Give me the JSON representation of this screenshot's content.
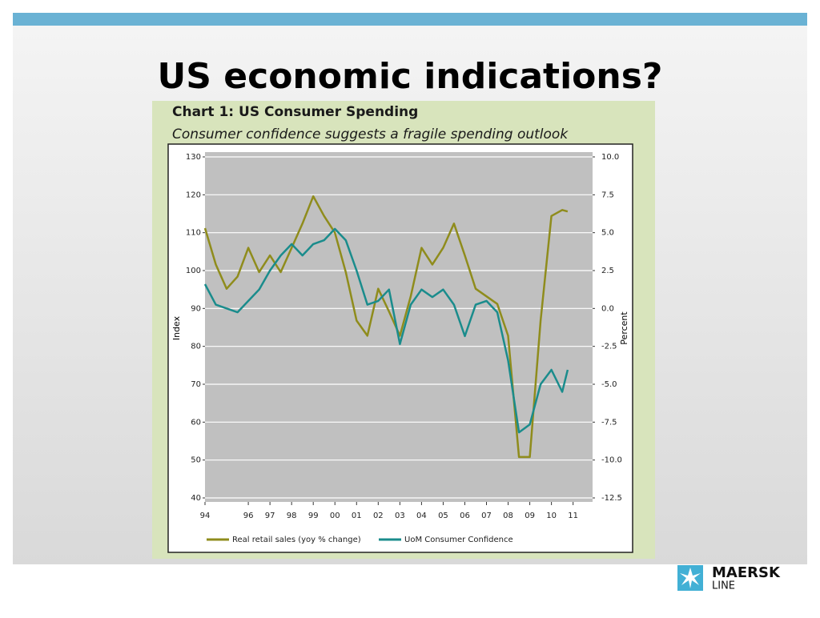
{
  "slide": {
    "title": "US economic indications?",
    "logo": [
      "MAERSK",
      "LINE"
    ]
  },
  "chart_data": {
    "type": "line",
    "title": "Chart 1: US Consumer Spending",
    "subtitle": "Consumer confidence suggests a fragile spending outlook",
    "y_label": "Index",
    "y2_label": "Percent",
    "x": [
      1994,
      1994.5,
      1995,
      1995.5,
      1996,
      1996.5,
      1997,
      1997.5,
      1998,
      1998.5,
      1999,
      1999.5,
      2000,
      2000.5,
      2001,
      2001.5,
      2002,
      2002.5,
      2003,
      2003.5,
      2004,
      2004.5,
      2005,
      2005.5,
      2006,
      2006.5,
      2007,
      2007.5,
      2008,
      2008.5,
      2009,
      2009.5,
      2010,
      2010.5,
      2010.75
    ],
    "series": [
      {
        "name": "Real retail sales (yoy % change)",
        "color": "#8f8c1c",
        "axis": "y2",
        "values": [
          5.3,
          2.9,
          1.3,
          2.1,
          4.0,
          2.4,
          3.5,
          2.4,
          4.0,
          5.6,
          7.4,
          6.1,
          5.0,
          2.4,
          -0.8,
          -1.8,
          1.3,
          -0.2,
          -1.8,
          0.8,
          4.0,
          2.9,
          4.0,
          5.6,
          3.5,
          1.3,
          0.8,
          0.3,
          -1.8,
          -9.8,
          -9.8,
          -0.8,
          6.1,
          6.5,
          6.4
        ]
      },
      {
        "name": "UoM Consumer Confidence",
        "color": "#1a8c8c",
        "values": [
          96.4,
          91,
          90,
          89,
          92,
          95,
          100,
          104,
          107,
          104,
          107,
          108,
          111,
          108,
          100,
          91,
          92,
          95,
          80.6,
          91,
          95,
          93,
          95,
          91,
          82.7,
          91,
          92,
          89,
          76.3,
          57.3,
          59.4,
          70,
          73.8,
          68,
          73.8
        ]
      }
    ],
    "xlim": [
      1994,
      2011.9
    ],
    "xticks": [
      {
        "value": 1994,
        "label": "94"
      },
      {
        "value": 1996,
        "label": "96"
      },
      {
        "value": 1997,
        "label": "97"
      },
      {
        "value": 1998,
        "label": "98"
      },
      {
        "value": 1999,
        "label": "99"
      },
      {
        "value": 2000,
        "label": "00"
      },
      {
        "value": 2001,
        "label": "01"
      },
      {
        "value": 2002,
        "label": "02"
      },
      {
        "value": 2003,
        "label": "03"
      },
      {
        "value": 2004,
        "label": "04"
      },
      {
        "value": 2005,
        "label": "05"
      },
      {
        "value": 2006,
        "label": "06"
      },
      {
        "value": 2007,
        "label": "07"
      },
      {
        "value": 2008,
        "label": "08"
      },
      {
        "value": 2009,
        "label": "09"
      },
      {
        "value": 2010,
        "label": "10"
      },
      {
        "value": 2011,
        "label": "11"
      }
    ],
    "ylim": [
      40,
      130
    ],
    "yticks": [
      40,
      50,
      60,
      70,
      80,
      90,
      100,
      110,
      120,
      130
    ],
    "y2lim": [
      -12.5,
      10
    ],
    "y2ticks": [
      -12.5,
      {
        "value": -10,
        "label": "-10.0"
      },
      -7.5,
      {
        "value": -5,
        "label": "-5.0"
      },
      -2.5,
      {
        "value": 0,
        "label": "0.0"
      },
      2.5,
      {
        "value": 5,
        "label": "5.0"
      },
      7.5,
      {
        "value": 10,
        "label": "10.0"
      }
    ],
    "grid": true,
    "legend": "bottom"
  }
}
